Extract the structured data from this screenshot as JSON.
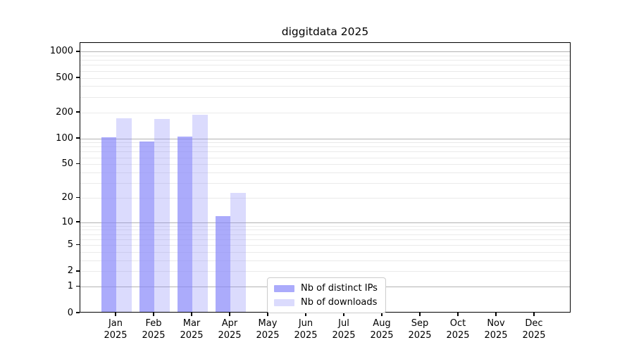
{
  "title": "diggitdata 2025",
  "chart_data": {
    "type": "bar",
    "title": "diggitdata 2025",
    "xlabel": "",
    "ylabel": "",
    "yscale": "log1p",
    "grid": "on (minor + major horizontal gridlines)",
    "ylim": [
      0,
      1270
    ],
    "yticks": [
      0,
      1,
      2,
      5,
      10,
      20,
      50,
      100,
      200,
      500,
      1000
    ],
    "categories": [
      "Jan",
      "Feb",
      "Mar",
      "Apr",
      "May",
      "Jun",
      "Jul",
      "Aug",
      "Sep",
      "Oct",
      "Nov",
      "Dec"
    ],
    "category_year": "2025",
    "series": [
      {
        "name": "Nb of distinct IPs",
        "color": "rgba(136,136,250,0.70)",
        "values": [
          104,
          93,
          106,
          12,
          0,
          0,
          0,
          0,
          0,
          0,
          0,
          0
        ]
      },
      {
        "name": "Nb of downloads",
        "color": "rgba(136,136,250,0.30)",
        "values": [
          173,
          168,
          191,
          23,
          0,
          0,
          0,
          0,
          0,
          0,
          0,
          0
        ]
      }
    ],
    "legend_position": "lower center, inside plot"
  },
  "colors": {
    "bar_base": "#8888fa",
    "major_grid": "#b2b2b2",
    "minor_grid": "#eaeaea",
    "axis": "#000000",
    "background": "#ffffff"
  }
}
